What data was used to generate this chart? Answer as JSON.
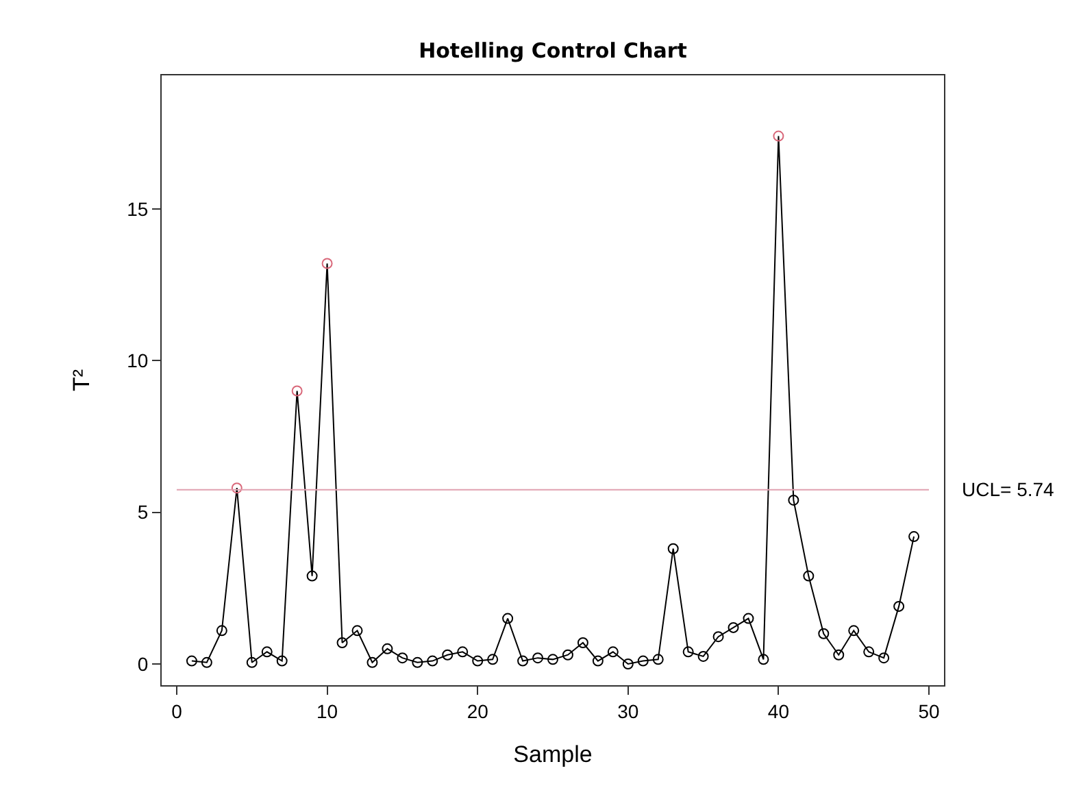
{
  "chart_data": {
    "type": "line",
    "title": "Hotelling Control Chart",
    "xlabel": "Sample",
    "ylabel": "T²",
    "x": [
      1,
      2,
      3,
      4,
      5,
      6,
      7,
      8,
      9,
      10,
      11,
      12,
      13,
      14,
      15,
      16,
      17,
      18,
      19,
      20,
      21,
      22,
      23,
      24,
      25,
      26,
      27,
      28,
      29,
      30,
      31,
      32,
      33,
      34,
      35,
      36,
      37,
      38,
      39,
      40,
      41,
      42,
      43,
      44,
      45,
      46,
      47,
      48,
      49
    ],
    "series": [
      {
        "color": "#000000",
        "colors": [
          "#000000",
          "#000000",
          "#000000",
          "#d9687a",
          "#000000",
          "#000000",
          "#000000",
          "#d9687a",
          "#000000",
          "#d9687a",
          "#000000",
          "#000000",
          "#000000",
          "#000000",
          "#000000",
          "#000000",
          "#000000",
          "#000000",
          "#000000",
          "#000000",
          "#000000",
          "#000000",
          "#000000",
          "#000000",
          "#000000",
          "#000000",
          "#000000",
          "#000000",
          "#000000",
          "#000000",
          "#000000",
          "#000000",
          "#000000",
          "#000000",
          "#000000",
          "#000000",
          "#000000",
          "#000000",
          "#000000",
          "#d9687a",
          "#000000",
          "#000000",
          "#000000",
          "#000000",
          "#000000",
          "#000000",
          "#000000",
          "#000000",
          "#000000"
        ],
        "values": [
          0.1,
          0.05,
          1.1,
          5.8,
          0.05,
          0.4,
          0.1,
          9.0,
          2.9,
          13.2,
          0.7,
          1.1,
          0.05,
          0.5,
          0.2,
          0.05,
          0.1,
          0.3,
          0.4,
          0.1,
          0.15,
          1.5,
          0.1,
          0.2,
          0.15,
          0.3,
          0.7,
          0.1,
          0.4,
          0.0,
          0.1,
          0.15,
          3.8,
          0.4,
          0.25,
          0.9,
          1.2,
          1.5,
          0.15,
          17.4,
          5.4,
          2.9,
          1.0,
          0.3,
          1.1,
          0.4,
          0.2,
          1.9,
          4.2
        ]
      }
    ],
    "xlim": [
      -1,
      51
    ],
    "ylim": [
      -0.7,
      19.4
    ],
    "xticks": [
      0,
      10,
      20,
      30,
      40,
      50
    ],
    "yticks": [
      0,
      5,
      10,
      15
    ],
    "ref_lines": [
      {
        "axis": "y",
        "value": 5.74,
        "label": "UCL= 5.74",
        "color": "#e0a0b0"
      }
    ],
    "grid": false,
    "marker": "circle",
    "line_style": "solid"
  }
}
